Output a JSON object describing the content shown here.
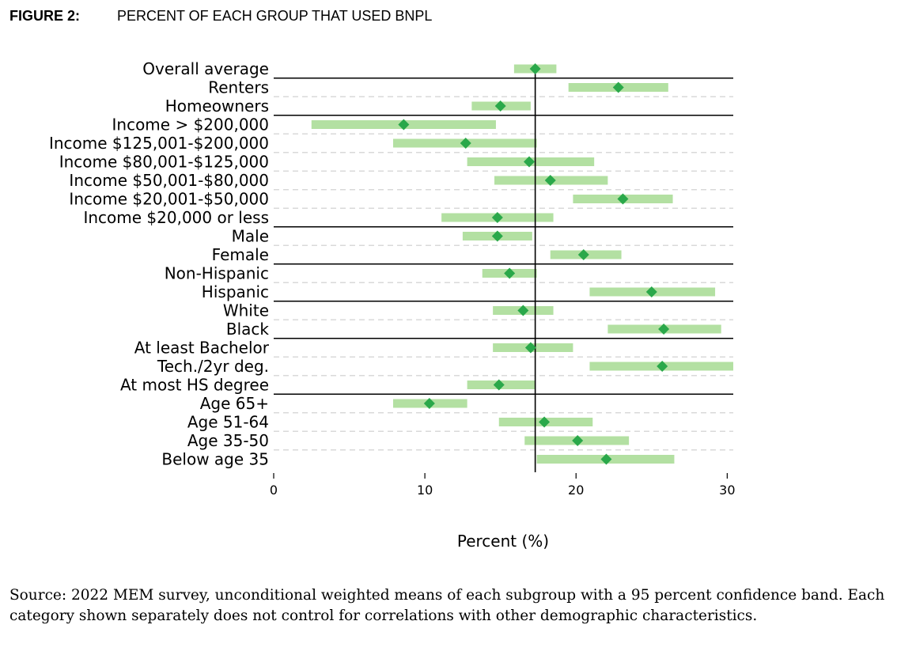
{
  "figure": {
    "label": "FIGURE 2:",
    "title": "PERCENT OF EACH GROUP THAT USED BNPL"
  },
  "chart_data": {
    "type": "dot-interval",
    "title": "PERCENT OF EACH GROUP THAT USED BNPL",
    "xlabel": "Percent (%)",
    "ylabel": "",
    "xlim": [
      0,
      30.4
    ],
    "xticks": [
      "0",
      "10",
      "20",
      "30"
    ],
    "xtick_values": [
      0,
      10,
      20,
      30
    ],
    "reference_line_x": 17.3,
    "categories": [
      "Overall average",
      "Renters",
      "Homeowners",
      "Income > $200,000",
      "Income $125,001-$200,000",
      "Income $80,001-$125,000",
      "Income $50,001-$80,000",
      "Income $20,001-$50,000",
      "Income $20,000 or less",
      "Male",
      "Female",
      "Non-Hispanic",
      "Hispanic",
      "White",
      "Black",
      "At least Bachelor",
      "Tech./2yr deg.",
      "At most HS degree",
      "Age 65+",
      "Age 51-64",
      "Age 35-50",
      "Below age 35"
    ],
    "series": [
      {
        "values": [
          17.3,
          22.8,
          15.0,
          8.6,
          12.7,
          16.9,
          18.3,
          23.1,
          14.8,
          14.8,
          20.5,
          15.6,
          25.0,
          16.5,
          25.8,
          17.0,
          25.7,
          14.9,
          10.3,
          17.9,
          20.1,
          22.0
        ],
        "ci_low": [
          15.9,
          19.5,
          13.1,
          2.5,
          7.9,
          12.8,
          14.6,
          19.8,
          11.1,
          12.5,
          18.3,
          13.8,
          20.9,
          14.5,
          22.1,
          14.5,
          20.9,
          12.8,
          7.9,
          14.9,
          16.6,
          17.4
        ],
        "ci_high": [
          18.7,
          26.1,
          17.0,
          14.7,
          17.4,
          21.2,
          22.1,
          26.4,
          18.5,
          17.1,
          23.0,
          17.4,
          29.2,
          18.5,
          29.6,
          19.8,
          30.4,
          17.3,
          12.8,
          21.1,
          23.5,
          26.5
        ]
      }
    ],
    "group_separators_after": [
      "Overall average",
      "Homeowners",
      "Income $20,000 or less",
      "Female",
      "Hispanic",
      "Black",
      "At most HS degree"
    ],
    "colors": {
      "band": "#b3e0a2",
      "marker": "#2aa84a",
      "separator": "#000000",
      "row_line": "#d9d9d9",
      "reference_line": "#000000"
    }
  },
  "source_note": "Source: 2022 MEM survey, unconditional weighted means of each subgroup with a 95 percent confidence band. Each category shown separately does not control for correlations with other demographic characteristics."
}
